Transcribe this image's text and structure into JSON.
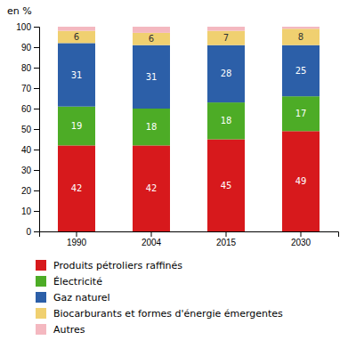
{
  "chart_data": {
    "type": "bar",
    "stacked": true,
    "y_label": "en %",
    "categories": [
      "1990",
      "2004",
      "2015",
      "2030"
    ],
    "series": [
      {
        "name": "Produits pétroliers raffinés",
        "color": "#d7191c",
        "values": [
          42,
          42,
          45,
          49
        ],
        "data_labels": true
      },
      {
        "name": "Électricité",
        "color": "#4dac26",
        "values": [
          19,
          18,
          18,
          17
        ],
        "data_labels": true
      },
      {
        "name": "Gaz naturel",
        "color": "#2c5fa8",
        "values": [
          31,
          31,
          28,
          25
        ],
        "data_labels": true
      },
      {
        "name": "Biocarburants et formes d'énergie émergentes",
        "color": "#f0d070",
        "values": [
          6,
          6,
          7,
          8
        ],
        "data_labels": true
      },
      {
        "name": "Autres",
        "color": "#f4b8c0",
        "values": [
          2,
          3,
          2,
          1
        ],
        "data_labels": false
      }
    ],
    "ylim": [
      0,
      100
    ],
    "yticks": [
      0,
      10,
      20,
      30,
      40,
      50,
      60,
      70,
      80,
      90,
      100
    ],
    "grid": false,
    "legend": "bottom"
  }
}
